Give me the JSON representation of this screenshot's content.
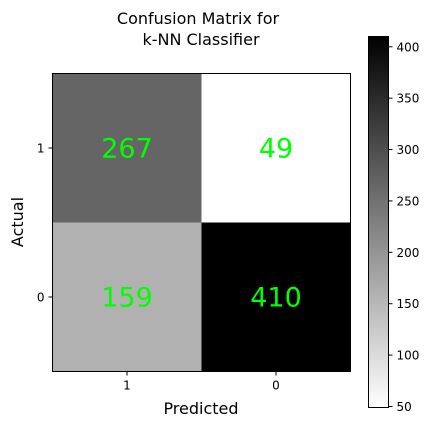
{
  "chart_data": {
    "type": "heatmap",
    "title_lines": [
      "Confusion Matrix for",
      "k-NN Classifier"
    ],
    "xlabel": "Predicted",
    "ylabel": "Actual",
    "x_categories": [
      "1",
      "0"
    ],
    "y_categories": [
      "1",
      "0"
    ],
    "matrix": [
      [
        267,
        49
      ],
      [
        159,
        410
      ]
    ],
    "colormap": "gray_r",
    "value_range": [
      49,
      410
    ],
    "annotation_color": "#00ff00",
    "colorbar": {
      "ticks": [
        50,
        100,
        150,
        200,
        250,
        300,
        350,
        400
      ],
      "placement": "right"
    }
  }
}
